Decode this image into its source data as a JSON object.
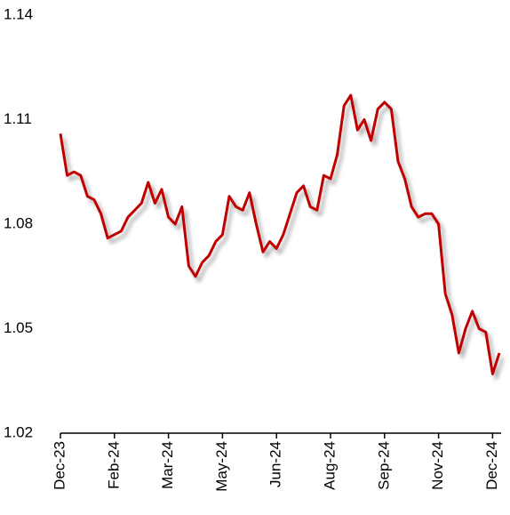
{
  "chart_data": {
    "type": "line",
    "categories": [
      "Dec-23",
      null,
      null,
      null,
      null,
      null,
      null,
      null,
      "Feb-24",
      null,
      null,
      null,
      null,
      null,
      null,
      null,
      "Mar-24",
      null,
      null,
      null,
      null,
      null,
      null,
      null,
      "May-24",
      null,
      null,
      null,
      null,
      null,
      null,
      null,
      "Jun-24",
      null,
      null,
      null,
      null,
      null,
      null,
      null,
      "Aug-24",
      null,
      null,
      null,
      null,
      null,
      null,
      null,
      "Sep-24",
      null,
      null,
      null,
      null,
      null,
      null,
      null,
      "Nov-24",
      null,
      null,
      null,
      null,
      null,
      null,
      null,
      "Dec-24",
      null
    ],
    "values": [
      1.106,
      1.094,
      1.095,
      1.094,
      1.088,
      1.087,
      1.083,
      1.076,
      1.077,
      1.078,
      1.082,
      1.084,
      1.086,
      1.092,
      1.086,
      1.09,
      1.082,
      1.08,
      1.085,
      1.068,
      1.065,
      1.069,
      1.071,
      1.075,
      1.077,
      1.088,
      1.085,
      1.084,
      1.089,
      1.08,
      1.072,
      1.075,
      1.073,
      1.077,
      1.083,
      1.089,
      1.091,
      1.085,
      1.084,
      1.094,
      1.093,
      1.1,
      1.114,
      1.117,
      1.107,
      1.11,
      1.104,
      1.113,
      1.115,
      1.113,
      1.098,
      1.093,
      1.085,
      1.082,
      1.083,
      1.083,
      1.08,
      1.06,
      1.054,
      1.043,
      1.05,
      1.055,
      1.05,
      1.049,
      1.037,
      1.043
    ],
    "color": "#c00000",
    "ylim": [
      1.02,
      1.14
    ],
    "yticks": [
      1.02,
      1.05,
      1.08,
      1.11,
      1.14
    ],
    "grid": false
  }
}
